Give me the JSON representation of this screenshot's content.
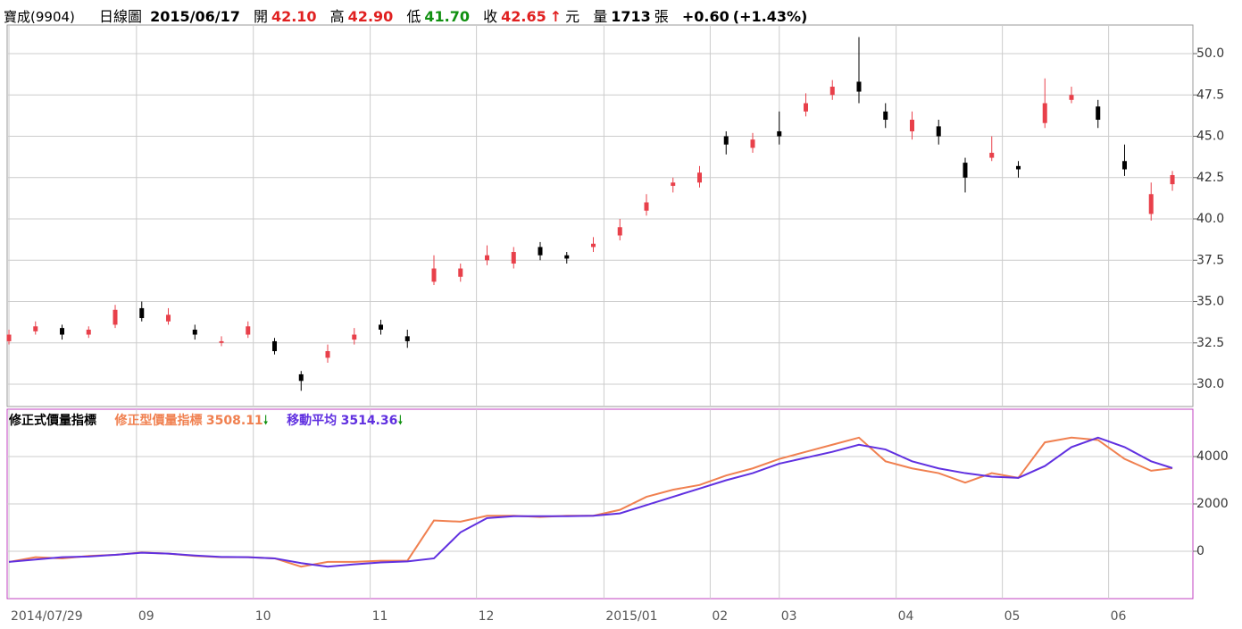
{
  "header": {
    "stock": "寶成(9904)",
    "period": "日線圖",
    "date": "2015/06/17",
    "open_label": "開",
    "open": "42.10",
    "high_label": "高",
    "high": "42.90",
    "low_label": "低",
    "low": "41.70",
    "close_label": "收",
    "close": "42.65",
    "unit": "元",
    "volume_label": "量",
    "volume": "1713",
    "volume_unit": "張",
    "change": "+0.60",
    "change_pct": "(+1.43%)"
  },
  "chart_data": [
    {
      "type": "candlestick",
      "x": [
        0,
        5,
        10,
        15,
        20,
        25,
        30,
        35,
        40,
        45,
        50,
        55,
        60,
        65,
        70,
        75,
        80,
        85,
        90,
        95,
        100,
        105,
        110,
        115,
        120,
        125,
        130,
        135,
        140,
        145,
        150,
        155,
        160,
        165,
        170,
        175,
        180,
        185,
        190,
        195,
        200,
        205,
        210,
        215,
        219
      ],
      "open": [
        32.6,
        33.2,
        33.4,
        33.0,
        33.6,
        34.6,
        33.8,
        33.3,
        32.5,
        33.0,
        32.6,
        30.6,
        31.6,
        32.7,
        33.6,
        32.9,
        36.2,
        36.5,
        37.5,
        37.3,
        38.3,
        37.8,
        38.3,
        39.0,
        40.5,
        42.0,
        42.2,
        45.0,
        44.3,
        45.3,
        46.5,
        47.5,
        48.3,
        46.5,
        45.3,
        45.6,
        43.4,
        43.7,
        43.2,
        45.8,
        47.2,
        46.8,
        43.5,
        40.3,
        42.1
      ],
      "high": [
        33.3,
        33.8,
        33.6,
        33.5,
        34.8,
        35.0,
        34.6,
        33.6,
        32.9,
        33.8,
        32.8,
        30.8,
        32.4,
        33.4,
        33.9,
        33.3,
        37.8,
        37.3,
        38.4,
        38.3,
        38.6,
        38.0,
        38.9,
        40.0,
        41.5,
        42.5,
        43.2,
        45.3,
        45.2,
        46.5,
        47.6,
        48.4,
        51.0,
        47.0,
        46.5,
        46.0,
        43.7,
        45.0,
        43.5,
        48.5,
        48.0,
        47.2,
        44.5,
        42.2,
        42.9
      ],
      "low": [
        32.4,
        33.0,
        32.7,
        32.8,
        33.4,
        33.8,
        33.6,
        32.7,
        32.3,
        32.8,
        31.8,
        29.6,
        31.3,
        32.4,
        33.0,
        32.2,
        36.0,
        36.2,
        37.2,
        37.0,
        37.5,
        37.3,
        38.0,
        38.7,
        40.2,
        41.6,
        41.9,
        43.9,
        44.0,
        44.5,
        46.2,
        47.2,
        47.0,
        45.5,
        44.8,
        44.5,
        41.6,
        43.5,
        42.5,
        45.5,
        47.0,
        45.5,
        42.6,
        39.9,
        41.7
      ],
      "close": [
        33.0,
        33.5,
        33.0,
        33.3,
        34.5,
        34.0,
        34.2,
        33.0,
        32.6,
        33.5,
        32.0,
        30.2,
        32.0,
        33.0,
        33.3,
        32.6,
        37.0,
        37.0,
        37.8,
        38.0,
        37.8,
        37.6,
        38.5,
        39.5,
        41.0,
        42.2,
        42.8,
        44.5,
        44.8,
        45.0,
        47.0,
        48.0,
        47.7,
        46.0,
        46.0,
        45.0,
        42.5,
        44.0,
        43.0,
        47.0,
        47.5,
        46.0,
        43.0,
        41.5,
        42.65
      ],
      "up_color": "#e8404a",
      "down_color": "#000000",
      "xlim": [
        -0.34,
        222.86
      ],
      "ylim": [
        28.65,
        51.73
      ],
      "yticks": [
        {
          "value": 30,
          "label": "30.0"
        },
        32.5,
        {
          "value": 35,
          "label": "35.0"
        },
        37.5,
        {
          "value": 40,
          "label": "40.0"
        },
        42.5,
        {
          "value": 45,
          "label": "45.0"
        },
        47.5,
        {
          "value": 50,
          "label": "50.0"
        }
      ],
      "xticks": [
        {
          "value": 0,
          "label": "2014/07/29"
        },
        {
          "value": 24,
          "label": "09"
        },
        {
          "value": 46,
          "label": "10"
        },
        {
          "value": 68,
          "label": "11"
        },
        {
          "value": 88,
          "label": "12"
        },
        {
          "value": 112,
          "label": "2015/01"
        },
        {
          "value": 132,
          "label": "02"
        },
        {
          "value": 145,
          "label": "03"
        },
        {
          "value": 167,
          "label": "04"
        },
        {
          "value": 187,
          "label": "05"
        },
        {
          "value": 207,
          "label": "06"
        }
      ],
      "grid": true
    },
    {
      "type": "line",
      "title": "修正式價量指標",
      "x": [
        0,
        5,
        10,
        15,
        20,
        25,
        30,
        35,
        40,
        45,
        50,
        55,
        60,
        65,
        70,
        75,
        80,
        85,
        90,
        95,
        100,
        105,
        110,
        115,
        120,
        125,
        130,
        135,
        140,
        145,
        150,
        155,
        160,
        165,
        170,
        175,
        180,
        185,
        190,
        195,
        200,
        205,
        210,
        215,
        219
      ],
      "series": [
        {
          "name": "修正型價量指標",
          "color": "#f08050",
          "values": [
            -450,
            -250,
            -300,
            -200,
            -150,
            -50,
            -100,
            -200,
            -250,
            -250,
            -300,
            -650,
            -450,
            -450,
            -400,
            -400,
            1300,
            1250,
            1500,
            1500,
            1450,
            1500,
            1500,
            1750,
            2300,
            2600,
            2800,
            3200,
            3500,
            3900,
            4200,
            4500,
            4800,
            3800,
            3500,
            3300,
            2900,
            3300,
            3100,
            4600,
            4800,
            4700,
            3900,
            3400,
            3508.11
          ]
        },
        {
          "name": "移動平均",
          "color": "#6030e0",
          "values": [
            -450,
            -350,
            -250,
            -220,
            -150,
            -60,
            -100,
            -180,
            -240,
            -250,
            -300,
            -500,
            -650,
            -550,
            -470,
            -430,
            -300,
            800,
            1400,
            1480,
            1480,
            1480,
            1500,
            1600,
            1950,
            2300,
            2650,
            3000,
            3300,
            3700,
            3950,
            4200,
            4500,
            4300,
            3800,
            3500,
            3300,
            3150,
            3100,
            3600,
            4400,
            4800,
            4400,
            3800,
            3514.36
          ]
        }
      ],
      "xlim": [
        -0.34,
        222.86
      ],
      "ylim": [
        -2000,
        6000
      ],
      "yticks": [
        0,
        2000,
        4000
      ],
      "grid": true
    }
  ]
}
